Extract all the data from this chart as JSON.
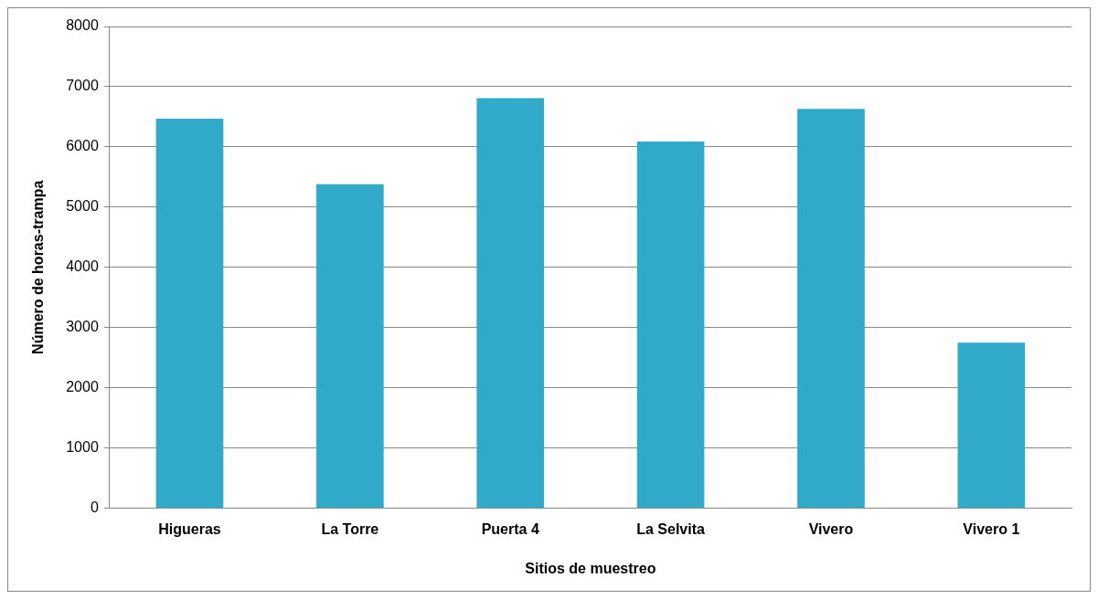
{
  "chart_data": {
    "type": "bar",
    "categories": [
      "Higueras",
      "La Torre",
      "Puerta 4",
      "La Selvita",
      "Vivero",
      "Vivero 1"
    ],
    "values": [
      6470,
      5380,
      6810,
      6090,
      6630,
      2750
    ],
    "color": "#31a9c9",
    "xlabel": "Sitios de muestreo",
    "ylabel": "Número de horas-trampa",
    "ylim": [
      0,
      8000
    ],
    "yticks": [
      0,
      1000,
      2000,
      3000,
      4000,
      5000,
      6000,
      7000,
      8000
    ],
    "grid": "y",
    "legend": false
  }
}
